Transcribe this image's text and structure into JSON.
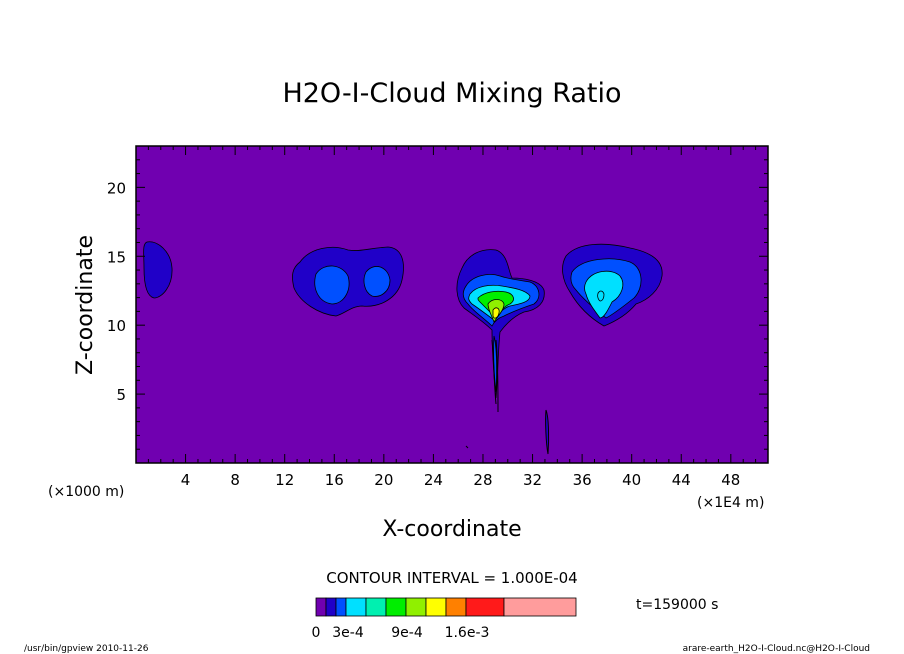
{
  "chart_data": {
    "type": "heatmap",
    "title": "H2O-I-Cloud Mixing Ratio",
    "xlabel": "X-coordinate",
    "ylabel": "Z-coordinate",
    "x_unit_left": "(×1000 m)",
    "x_unit_right": "(×1E4 m)",
    "xlim": [
      0,
      51
    ],
    "ylim": [
      0,
      23
    ],
    "xticks": [
      "4",
      "8",
      "12",
      "16",
      "20",
      "24",
      "28",
      "32",
      "36",
      "40",
      "44",
      "48"
    ],
    "yticks": [
      "5",
      "10",
      "15",
      "20"
    ],
    "background_color": "#7000b0",
    "contour_interval_text": "CONTOUR INTERVAL = 1.000E-04",
    "time_text": "t=159000 s",
    "colorbar": {
      "colors": [
        "#7000b0",
        "#2000c8",
        "#0050ff",
        "#00e0ff",
        "#00f0b0",
        "#00ee00",
        "#90f000",
        "#ffff00",
        "#ff8000",
        "#ff1a1a",
        "#ff9c9c"
      ],
      "labels": [
        "0",
        "3e-4",
        "9e-4",
        "1.6e-3"
      ]
    },
    "features": [
      {
        "name": "left-edge-cloud",
        "x": 1.8,
        "z": 14,
        "max_level": 1
      },
      {
        "name": "cloud-16-20",
        "x": 17.5,
        "z": 13.5,
        "max_level": 2
      },
      {
        "name": "plume-29",
        "x": 29,
        "z": 12,
        "max_level": 5
      },
      {
        "name": "cloud-38",
        "x": 38,
        "z": 13,
        "max_level": 3
      },
      {
        "name": "stem-33",
        "x": 33.3,
        "z": 2,
        "max_level": 1
      }
    ]
  },
  "footer": {
    "left": "/usr/bin/gpview  2010-11-26",
    "right": "arare-earth_H2O-I-Cloud.nc@H2O-I-Cloud"
  }
}
